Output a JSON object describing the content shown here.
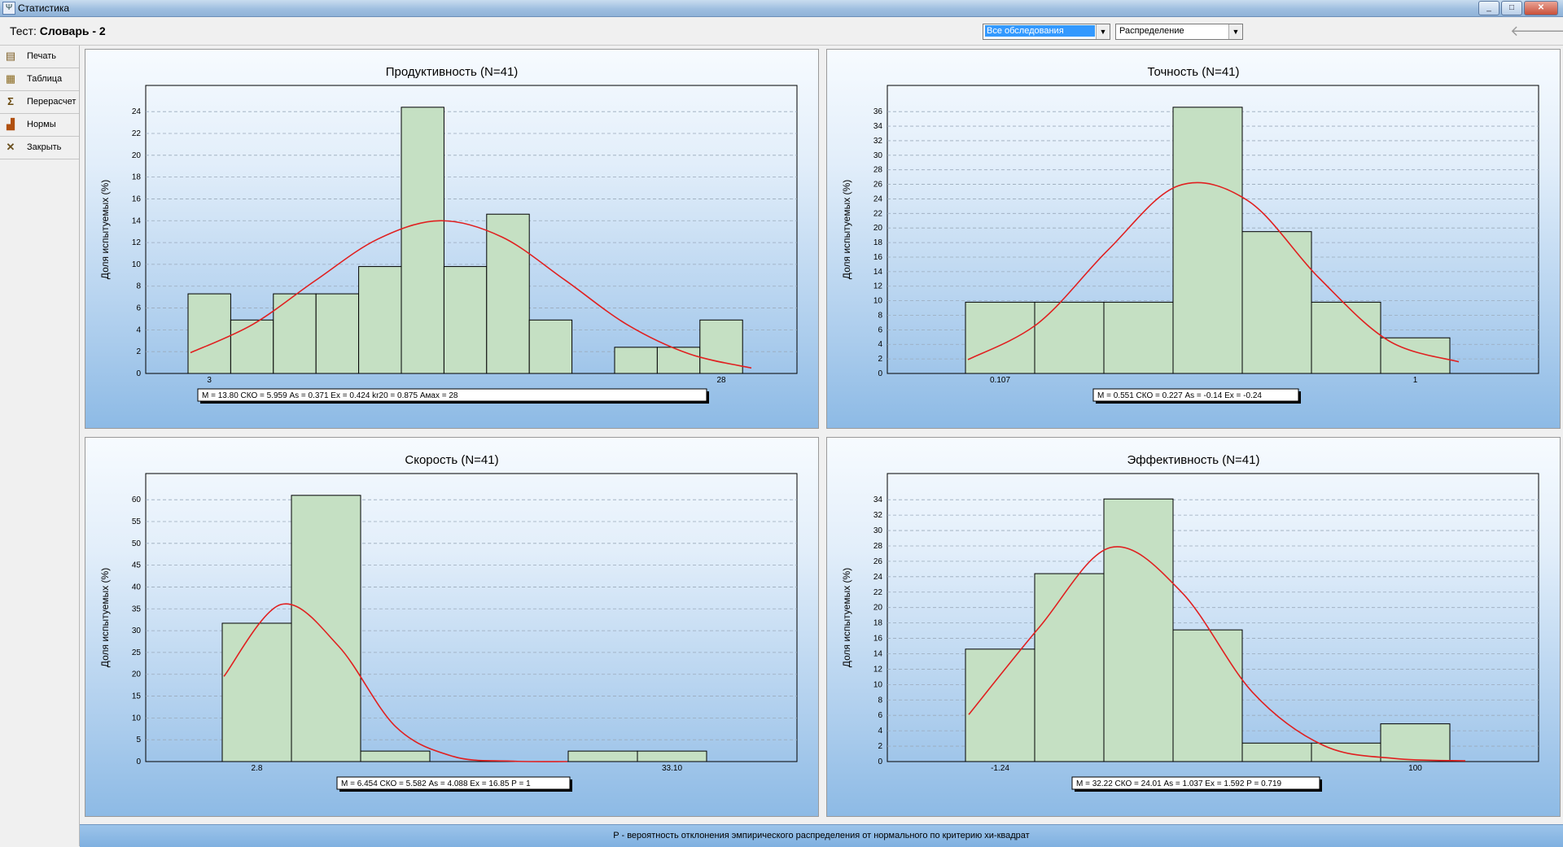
{
  "window": {
    "title": "Статистика"
  },
  "header": {
    "test_label": "Тест:",
    "test_name": "Словарь - 2"
  },
  "filters": {
    "scope_selected": "Все обследования",
    "view_selected": "Распределение"
  },
  "toolbar": [
    {
      "label": "Печать",
      "icon": "printer-icon"
    },
    {
      "label": "Таблица",
      "icon": "table-icon"
    },
    {
      "label": "Перерасчет",
      "icon": "sigma-icon"
    },
    {
      "label": "Нормы",
      "icon": "norms-chart-icon"
    },
    {
      "label": "Закрыть",
      "icon": "close-icon"
    }
  ],
  "footer": {
    "note": "P - вероятность отклонения эмпирического распределения от нормального по критерию хи-квадрат"
  },
  "colors": {
    "bar_fill": "#c5e0c3",
    "curve": "#e02020",
    "panel_bottom": "#8dbae5"
  },
  "chart_data": [
    {
      "type": "bar",
      "title": "Продуктивность (N=41)",
      "ylabel": "Доля испытуемых (%)",
      "x_tick_labels": [
        "3",
        "28"
      ],
      "ylim": [
        0,
        26.4
      ],
      "y_ticks": [
        0,
        2,
        4,
        6,
        8,
        10,
        12,
        14,
        16,
        18,
        20,
        22,
        24
      ],
      "bins": 13,
      "values": [
        7.3,
        4.9,
        7.3,
        7.3,
        9.8,
        24.4,
        9.8,
        14.6,
        4.9,
        0,
        2.4,
        2.4,
        4.9
      ],
      "curve": [
        1.9,
        4.5,
        8.5,
        12.3,
        14.0,
        12.5,
        8.6,
        4.5,
        1.8,
        0.5
      ],
      "stats": "M = 13.80  СКО = 5.959  As = 0.371  Ex = 0.424  kr20 = 0.875   Амах = 28",
      "grid": true
    },
    {
      "type": "bar",
      "title": "Точность (N=41)",
      "ylabel": "Доля испытуемых (%)",
      "x_tick_labels": [
        "0.107",
        "1"
      ],
      "ylim": [
        0,
        39.6
      ],
      "y_ticks": [
        0,
        2,
        4,
        6,
        8,
        10,
        12,
        14,
        16,
        18,
        20,
        22,
        24,
        26,
        28,
        30,
        32,
        34,
        36
      ],
      "bins": 7,
      "values": [
        9.8,
        9.8,
        9.8,
        36.6,
        19.5,
        9.8,
        4.9
      ],
      "curve": [
        1.9,
        6.9,
        17.0,
        25.8,
        23.7,
        13.2,
        4.5,
        1.6
      ],
      "stats": "M = 0.551  СКО = 0.227  As = -0.14  Ex = -0.24",
      "grid": true
    },
    {
      "type": "bar",
      "title": "Скорость (N=41)",
      "ylabel": "Доля испытуемых (%)",
      "x_tick_labels": [
        "2.8",
        "33.10"
      ],
      "ylim": [
        0,
        66
      ],
      "y_ticks": [
        0,
        5,
        10,
        15,
        20,
        25,
        30,
        35,
        40,
        45,
        50,
        55,
        60
      ],
      "bins": 7,
      "values": [
        31.7,
        61.0,
        2.4,
        0,
        0,
        2.4,
        2.4
      ],
      "curve": [
        19.5,
        36.0,
        26.5,
        8.0,
        1.2,
        0.1,
        0
      ],
      "stats": "M = 6.454  СКО = 5.582  As = 4.088  Ex = 16.85  P = 1",
      "grid": true
    },
    {
      "type": "bar",
      "title": "Эффективность (N=41)",
      "ylabel": "Доля испытуемых (%)",
      "x_tick_labels": [
        "-1.24",
        "100"
      ],
      "ylim": [
        0,
        37.4
      ],
      "y_ticks": [
        0,
        2,
        4,
        6,
        8,
        10,
        12,
        14,
        16,
        18,
        20,
        22,
        24,
        26,
        28,
        30,
        32,
        34
      ],
      "bins": 7,
      "values": [
        14.6,
        24.4,
        34.1,
        17.1,
        2.4,
        2.4,
        4.9
      ],
      "curve": [
        6.1,
        17.5,
        27.8,
        22.0,
        9.0,
        2.1,
        0.4,
        0.1
      ],
      "stats": "M = 32.22  СКО = 24.01  As = 1.037  Ex = 1.592  P = 0.719",
      "grid": true
    }
  ]
}
